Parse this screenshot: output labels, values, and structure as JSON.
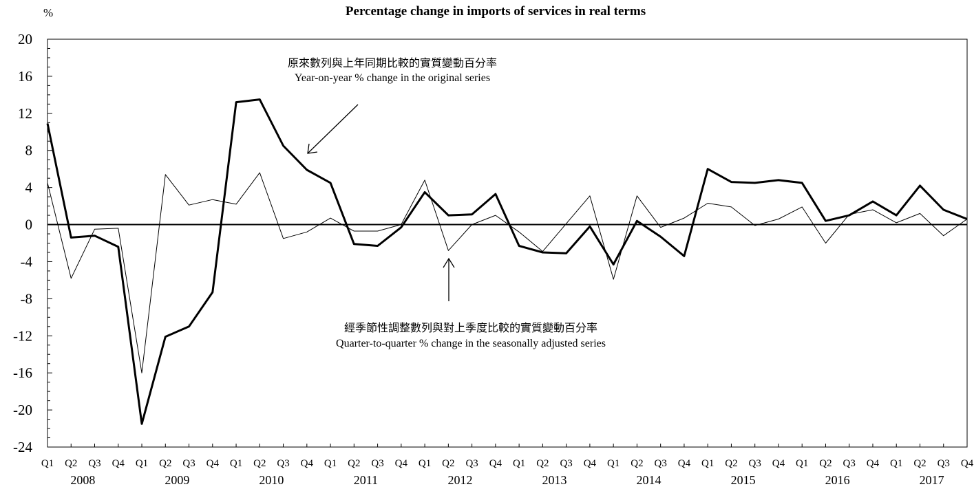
{
  "chart_data": {
    "type": "line",
    "title": "Percentage change in imports of services in real terms",
    "ylabel": "%",
    "ylim": [
      -24,
      20
    ],
    "yticks": [
      20,
      16,
      12,
      8,
      4,
      0,
      -4,
      -8,
      -12,
      -16,
      -20,
      -24
    ],
    "ytick_labels": [
      "20",
      "16",
      "12",
      "8",
      "4",
      "0",
      "-4",
      "-8",
      "-12",
      "-16",
      "-20",
      "-24"
    ],
    "quarters": [
      "Q1",
      "Q2",
      "Q3",
      "Q4",
      "Q1",
      "Q2",
      "Q3",
      "Q4",
      "Q1",
      "Q2",
      "Q3",
      "Q4",
      "Q1",
      "Q2",
      "Q3",
      "Q4",
      "Q1",
      "Q2",
      "Q3",
      "Q4",
      "Q1",
      "Q2",
      "Q3",
      "Q4",
      "Q1",
      "Q2",
      "Q3",
      "Q4",
      "Q1",
      "Q2",
      "Q3",
      "Q4",
      "Q1",
      "Q2",
      "Q3",
      "Q4",
      "Q1",
      "Q2",
      "Q3",
      "Q4"
    ],
    "years": [
      "2008",
      "2009",
      "2010",
      "2011",
      "2012",
      "2013",
      "2014",
      "2015",
      "2016",
      "2017"
    ],
    "grid": false,
    "series": [
      {
        "name": "Year-on-year % change in the original series",
        "name_zh": "原來數列與上年同期比較的實質變動百分率",
        "style": "thick",
        "color": "#000000",
        "values": [
          10.9,
          -1.4,
          -1.2,
          -2.4,
          -21.5,
          -12.1,
          -11.0,
          -7.3,
          13.2,
          13.5,
          8.5,
          5.9,
          4.5,
          -2.1,
          -2.3,
          -0.3,
          3.5,
          1.0,
          1.1,
          3.3,
          -2.3,
          -3.0,
          -3.1,
          -0.2,
          -4.3,
          0.4,
          -1.3,
          -3.4,
          6.0,
          4.6,
          4.5,
          4.8,
          4.5,
          0.4,
          1.0,
          2.5,
          1.0,
          4.2,
          1.6,
          0.6
        ]
      },
      {
        "name": "Quarter-to-quarter % change in the seasonally adjusted series",
        "name_zh": "經季節性調整數列與對上季度比較的實質變動百分率",
        "style": "thin",
        "color": "#000000",
        "values": [
          4.5,
          -5.8,
          -0.5,
          -0.4,
          -16.0,
          5.4,
          2.1,
          2.7,
          2.2,
          5.6,
          -1.5,
          -0.8,
          0.7,
          -0.7,
          -0.7,
          0.0,
          4.8,
          -2.8,
          0.0,
          1.0,
          -0.8,
          -2.9,
          0.1,
          3.1,
          -5.9,
          3.1,
          -0.3,
          0.7,
          2.3,
          1.9,
          -0.1,
          0.6,
          1.9,
          -2.0,
          1.1,
          1.6,
          0.2,
          1.2,
          -1.2,
          0.6
        ]
      }
    ]
  }
}
